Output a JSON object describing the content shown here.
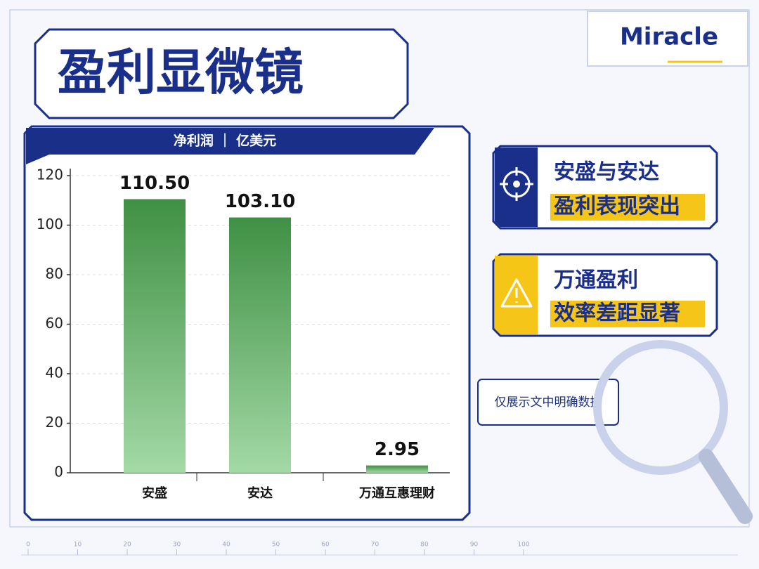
{
  "title": "盈利显微镜",
  "logo": "Miracle",
  "chart_data": {
    "type": "bar",
    "subtitle": "净利润 ｜ 亿美元",
    "categories": [
      "安盛",
      "安达",
      "万通互惠理财"
    ],
    "values": [
      110.5,
      103.1,
      2.95
    ],
    "value_labels": [
      "110.50",
      "103.10",
      "2.95"
    ],
    "color": "#4a9a4e",
    "ylim": [
      0,
      120
    ],
    "yticks": [
      0,
      20,
      40,
      60,
      80,
      100,
      120
    ],
    "grid": true
  },
  "callouts": [
    {
      "line1": "安盛与安达",
      "line2": "盈利表现突出"
    },
    {
      "line1": "万通盈利",
      "line2": "效率差距显著"
    }
  ],
  "note": "仅展示文中明确数据",
  "ruler": [
    0,
    10,
    20,
    30,
    40,
    50,
    60,
    70,
    80,
    90,
    100
  ]
}
